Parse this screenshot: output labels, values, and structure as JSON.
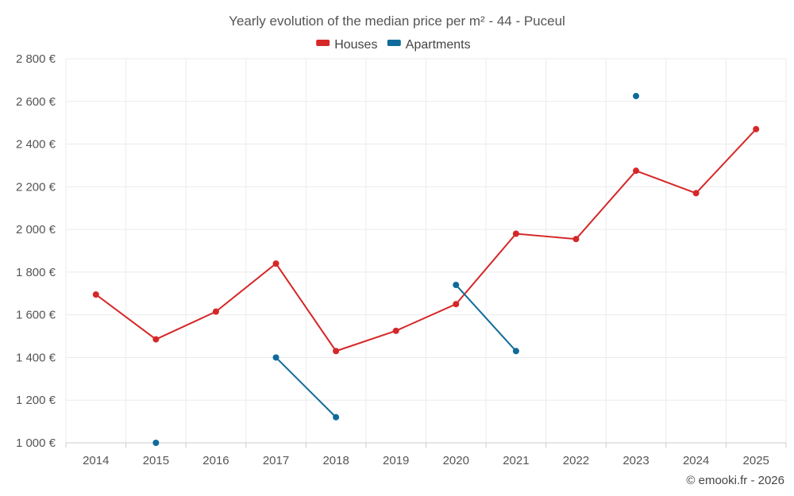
{
  "chart_data": {
    "type": "line",
    "title": "Yearly evolution of the median price per m² - 44 - Puceul",
    "categories": [
      "2014",
      "2015",
      "2016",
      "2017",
      "2018",
      "2019",
      "2020",
      "2021",
      "2022",
      "2023",
      "2024",
      "2025"
    ],
    "ylim": [
      1000,
      2800
    ],
    "yticks": [
      1000,
      1200,
      1400,
      1600,
      1800,
      2000,
      2200,
      2400,
      2600,
      2800
    ],
    "ytick_labels": [
      "1 000 €",
      "1 200 €",
      "1 400 €",
      "1 600 €",
      "1 800 €",
      "2 000 €",
      "2 200 €",
      "2 400 €",
      "2 600 €",
      "2 800 €"
    ],
    "xlabel": "",
    "ylabel": "",
    "legend_position": "top-center",
    "series": [
      {
        "name": "Houses",
        "color": "#d62728",
        "values": [
          1695,
          1485,
          1615,
          1840,
          1430,
          1525,
          1650,
          1980,
          1955,
          2275,
          2170,
          2470
        ]
      },
      {
        "name": "Apartments",
        "color": "#0f6b99",
        "values": [
          null,
          1000,
          null,
          1400,
          1120,
          null,
          1740,
          1430,
          null,
          2625,
          null,
          null
        ]
      }
    ],
    "credit": "© emooki.fr - 2026"
  }
}
